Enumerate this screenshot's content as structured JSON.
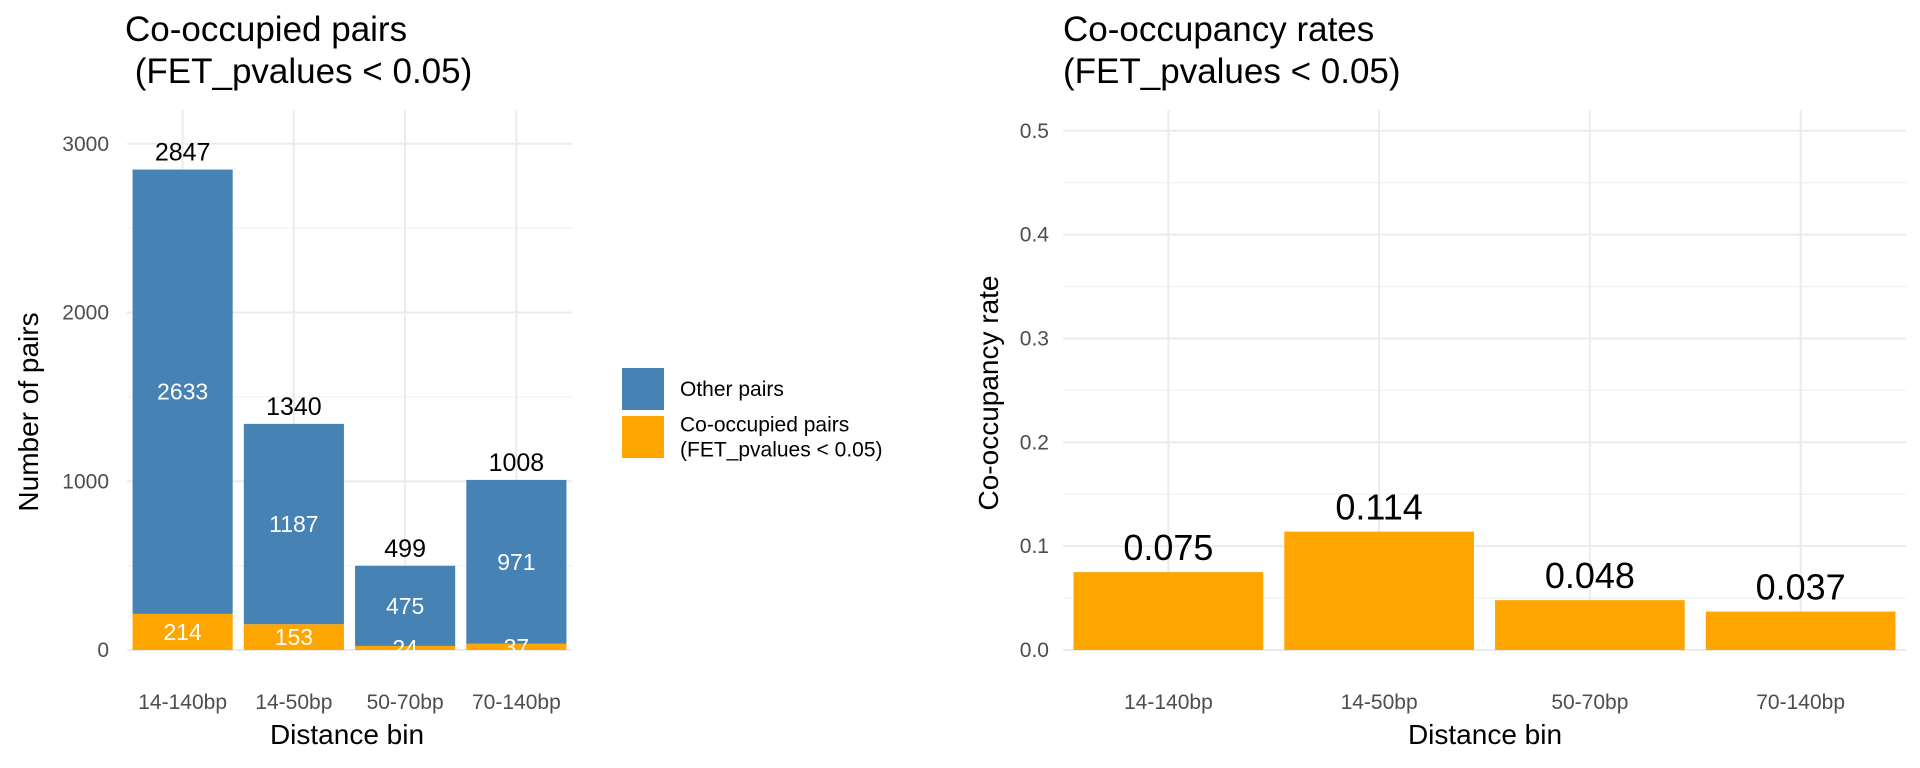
{
  "chart_data": [
    {
      "type": "bar",
      "stacked": true,
      "title_line1": "Co-occupied pairs",
      "title_line2": " (FET_pvalues < 0.05)",
      "xlabel": "Distance bin",
      "ylabel": "Number of pairs",
      "categories": [
        "14-140bp",
        "14-50bp",
        "50-70bp",
        "70-140bp"
      ],
      "series": [
        {
          "key": "co",
          "name": "Co-occupied pairs (FET_pvalues < 0.05)",
          "color": "#FFA500",
          "values": [
            214,
            153,
            24,
            37
          ]
        },
        {
          "key": "other",
          "name": "Other pairs",
          "color": "#4682B4",
          "values": [
            2633,
            1187,
            475,
            971
          ]
        }
      ],
      "totals": [
        2847,
        1340,
        499,
        1008
      ],
      "ylim": [
        0,
        3200
      ],
      "yticks": [
        0,
        1000,
        2000,
        3000
      ],
      "grid": true,
      "legend": {
        "placement": "right",
        "items": [
          {
            "key": "other",
            "color": "#4682B4",
            "lines": [
              "Other pairs"
            ]
          },
          {
            "key": "co",
            "color": "#FFA500",
            "lines": [
              "Co-occupied pairs",
              "(FET_pvalues < 0.05)"
            ]
          }
        ]
      }
    },
    {
      "type": "bar",
      "title_line1": "Co-occupancy rates",
      "title_line2": "(FET_pvalues < 0.05)",
      "xlabel": "Distance bin",
      "ylabel": "Co-occupancy rate",
      "categories": [
        "14-140bp",
        "14-50bp",
        "50-70bp",
        "70-140bp"
      ],
      "values": [
        0.075,
        0.114,
        0.048,
        0.037
      ],
      "labels": [
        "0.075",
        "0.114",
        "0.048",
        "0.037"
      ],
      "color": "#FFA500",
      "ylim": [
        0,
        0.52
      ],
      "yticks": [
        0.0,
        0.1,
        0.2,
        0.3,
        0.4,
        0.5
      ],
      "yticklabels": [
        "0.0",
        "0.1",
        "0.2",
        "0.3",
        "0.4",
        "0.5"
      ],
      "grid": true
    }
  ]
}
